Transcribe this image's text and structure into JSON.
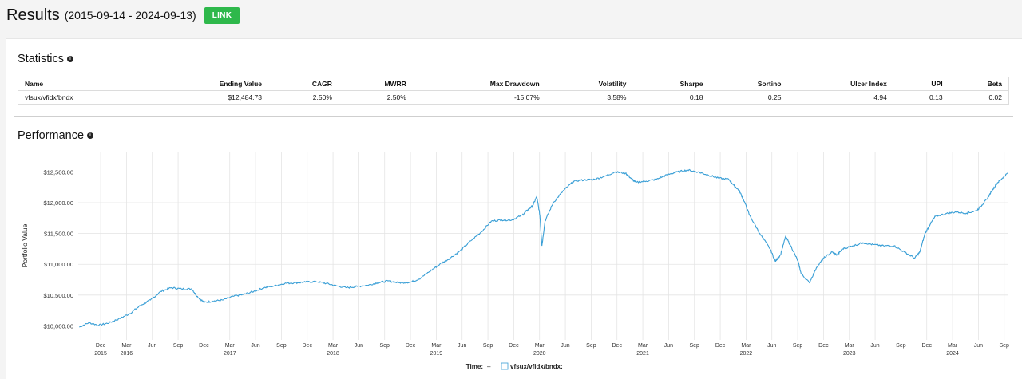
{
  "header": {
    "title": "Results",
    "date_range": "(2015-09-14 - 2024-09-13)",
    "link_label": "LINK"
  },
  "statistics": {
    "title": "Statistics",
    "columns": [
      "Name",
      "Ending Value",
      "CAGR",
      "MWRR",
      "Max Drawdown",
      "Volatility",
      "Sharpe",
      "Sortino",
      "Ulcer Index",
      "UPI",
      "Beta"
    ],
    "rows": [
      [
        "vfsux/vfidx/bndx",
        "$12,484.73",
        "2.50%",
        "2.50%",
        "-15.07%",
        "3.58%",
        "0.18",
        "0.25",
        "4.94",
        "0.13",
        "0.02"
      ]
    ]
  },
  "performance": {
    "title": "Performance",
    "legend_time_label": "Time:",
    "legend_time_value": "–",
    "legend_series_label": "vfsux/vfidx/bndx:"
  },
  "colors": {
    "series": "#3a9fd6",
    "link_button": "#2eb84b",
    "grid": "#e4e4e4"
  },
  "chart_data": {
    "type": "line",
    "ylabel": "Portfolio Value",
    "y_ticks": [
      "$10,000.00",
      "$10,500.00",
      "$11,000.00",
      "$11,500.00",
      "$12,000.00",
      "$12,500.00"
    ],
    "y_tick_values": [
      10000,
      10500,
      11000,
      11500,
      12000,
      12500
    ],
    "ylim": [
      9850,
      12700
    ],
    "xlim": [
      2015.7,
      2024.7
    ],
    "x_ticks": [
      {
        "label": "Dec",
        "year": "2015",
        "t": 2015.917
      },
      {
        "label": "Mar",
        "year": "2016",
        "t": 2016.167
      },
      {
        "label": "Jun",
        "year": "",
        "t": 2016.417
      },
      {
        "label": "Sep",
        "year": "",
        "t": 2016.667
      },
      {
        "label": "Dec",
        "year": "",
        "t": 2016.917
      },
      {
        "label": "Mar",
        "year": "2017",
        "t": 2017.167
      },
      {
        "label": "Jun",
        "year": "",
        "t": 2017.417
      },
      {
        "label": "Sep",
        "year": "",
        "t": 2017.667
      },
      {
        "label": "Dec",
        "year": "",
        "t": 2017.917
      },
      {
        "label": "Mar",
        "year": "2018",
        "t": 2018.167
      },
      {
        "label": "Jun",
        "year": "",
        "t": 2018.417
      },
      {
        "label": "Sep",
        "year": "",
        "t": 2018.667
      },
      {
        "label": "Dec",
        "year": "",
        "t": 2018.917
      },
      {
        "label": "Mar",
        "year": "2019",
        "t": 2019.167
      },
      {
        "label": "Jun",
        "year": "",
        "t": 2019.417
      },
      {
        "label": "Sep",
        "year": "",
        "t": 2019.667
      },
      {
        "label": "Dec",
        "year": "",
        "t": 2019.917
      },
      {
        "label": "Mar",
        "year": "2020",
        "t": 2020.167
      },
      {
        "label": "Jun",
        "year": "",
        "t": 2020.417
      },
      {
        "label": "Sep",
        "year": "",
        "t": 2020.667
      },
      {
        "label": "Dec",
        "year": "",
        "t": 2020.917
      },
      {
        "label": "Mar",
        "year": "2021",
        "t": 2021.167
      },
      {
        "label": "Jun",
        "year": "",
        "t": 2021.417
      },
      {
        "label": "Sep",
        "year": "",
        "t": 2021.667
      },
      {
        "label": "Dec",
        "year": "",
        "t": 2021.917
      },
      {
        "label": "Mar",
        "year": "2022",
        "t": 2022.167
      },
      {
        "label": "Jun",
        "year": "",
        "t": 2022.417
      },
      {
        "label": "Sep",
        "year": "",
        "t": 2022.667
      },
      {
        "label": "Dec",
        "year": "",
        "t": 2022.917
      },
      {
        "label": "Mar",
        "year": "2023",
        "t": 2023.167
      },
      {
        "label": "Jun",
        "year": "",
        "t": 2023.417
      },
      {
        "label": "Sep",
        "year": "",
        "t": 2023.667
      },
      {
        "label": "Dec",
        "year": "",
        "t": 2023.917
      },
      {
        "label": "Mar",
        "year": "2024",
        "t": 2024.167
      },
      {
        "label": "Jun",
        "year": "",
        "t": 2024.417
      },
      {
        "label": "Sep",
        "year": "",
        "t": 2024.667
      }
    ],
    "series": [
      {
        "name": "vfsux/vfidx/bndx",
        "points": [
          [
            2015.71,
            9980
          ],
          [
            2015.8,
            10050
          ],
          [
            2015.9,
            10010
          ],
          [
            2016.0,
            10050
          ],
          [
            2016.1,
            10120
          ],
          [
            2016.2,
            10200
          ],
          [
            2016.3,
            10330
          ],
          [
            2016.4,
            10420
          ],
          [
            2016.5,
            10560
          ],
          [
            2016.6,
            10620
          ],
          [
            2016.7,
            10600
          ],
          [
            2016.8,
            10600
          ],
          [
            2016.85,
            10480
          ],
          [
            2016.92,
            10380
          ],
          [
            2017.0,
            10400
          ],
          [
            2017.1,
            10420
          ],
          [
            2017.2,
            10480
          ],
          [
            2017.3,
            10510
          ],
          [
            2017.4,
            10560
          ],
          [
            2017.5,
            10620
          ],
          [
            2017.6,
            10650
          ],
          [
            2017.7,
            10690
          ],
          [
            2017.8,
            10700
          ],
          [
            2017.9,
            10710
          ],
          [
            2018.0,
            10720
          ],
          [
            2018.1,
            10690
          ],
          [
            2018.2,
            10650
          ],
          [
            2018.3,
            10620
          ],
          [
            2018.4,
            10640
          ],
          [
            2018.5,
            10660
          ],
          [
            2018.6,
            10700
          ],
          [
            2018.7,
            10730
          ],
          [
            2018.8,
            10700
          ],
          [
            2018.92,
            10710
          ],
          [
            2019.0,
            10760
          ],
          [
            2019.1,
            10880
          ],
          [
            2019.2,
            11000
          ],
          [
            2019.3,
            11100
          ],
          [
            2019.4,
            11220
          ],
          [
            2019.5,
            11380
          ],
          [
            2019.6,
            11520
          ],
          [
            2019.7,
            11700
          ],
          [
            2019.8,
            11720
          ],
          [
            2019.9,
            11720
          ],
          [
            2020.0,
            11800
          ],
          [
            2020.05,
            11880
          ],
          [
            2020.1,
            11950
          ],
          [
            2020.14,
            12100
          ],
          [
            2020.17,
            11800
          ],
          [
            2020.19,
            11300
          ],
          [
            2020.22,
            11700
          ],
          [
            2020.3,
            12000
          ],
          [
            2020.4,
            12200
          ],
          [
            2020.5,
            12350
          ],
          [
            2020.6,
            12370
          ],
          [
            2020.7,
            12380
          ],
          [
            2020.8,
            12430
          ],
          [
            2020.9,
            12500
          ],
          [
            2021.0,
            12480
          ],
          [
            2021.05,
            12400
          ],
          [
            2021.1,
            12330
          ],
          [
            2021.2,
            12350
          ],
          [
            2021.3,
            12380
          ],
          [
            2021.4,
            12450
          ],
          [
            2021.5,
            12500
          ],
          [
            2021.6,
            12530
          ],
          [
            2021.7,
            12500
          ],
          [
            2021.8,
            12450
          ],
          [
            2021.9,
            12400
          ],
          [
            2022.0,
            12380
          ],
          [
            2022.05,
            12280
          ],
          [
            2022.1,
            12200
          ],
          [
            2022.15,
            12020
          ],
          [
            2022.2,
            11800
          ],
          [
            2022.3,
            11500
          ],
          [
            2022.4,
            11250
          ],
          [
            2022.45,
            11050
          ],
          [
            2022.5,
            11150
          ],
          [
            2022.55,
            11450
          ],
          [
            2022.6,
            11300
          ],
          [
            2022.67,
            11050
          ],
          [
            2022.7,
            10850
          ],
          [
            2022.78,
            10700
          ],
          [
            2022.85,
            10950
          ],
          [
            2022.92,
            11100
          ],
          [
            2023.0,
            11200
          ],
          [
            2023.05,
            11150
          ],
          [
            2023.1,
            11250
          ],
          [
            2023.2,
            11300
          ],
          [
            2023.3,
            11350
          ],
          [
            2023.4,
            11320
          ],
          [
            2023.5,
            11300
          ],
          [
            2023.6,
            11300
          ],
          [
            2023.7,
            11200
          ],
          [
            2023.8,
            11100
          ],
          [
            2023.85,
            11200
          ],
          [
            2023.9,
            11500
          ],
          [
            2023.95,
            11650
          ],
          [
            2024.0,
            11780
          ],
          [
            2024.1,
            11820
          ],
          [
            2024.2,
            11850
          ],
          [
            2024.3,
            11830
          ],
          [
            2024.4,
            11870
          ],
          [
            2024.45,
            11960
          ],
          [
            2024.5,
            12060
          ],
          [
            2024.55,
            12200
          ],
          [
            2024.6,
            12320
          ],
          [
            2024.65,
            12400
          ],
          [
            2024.7,
            12480
          ]
        ]
      }
    ],
    "grid": true
  }
}
